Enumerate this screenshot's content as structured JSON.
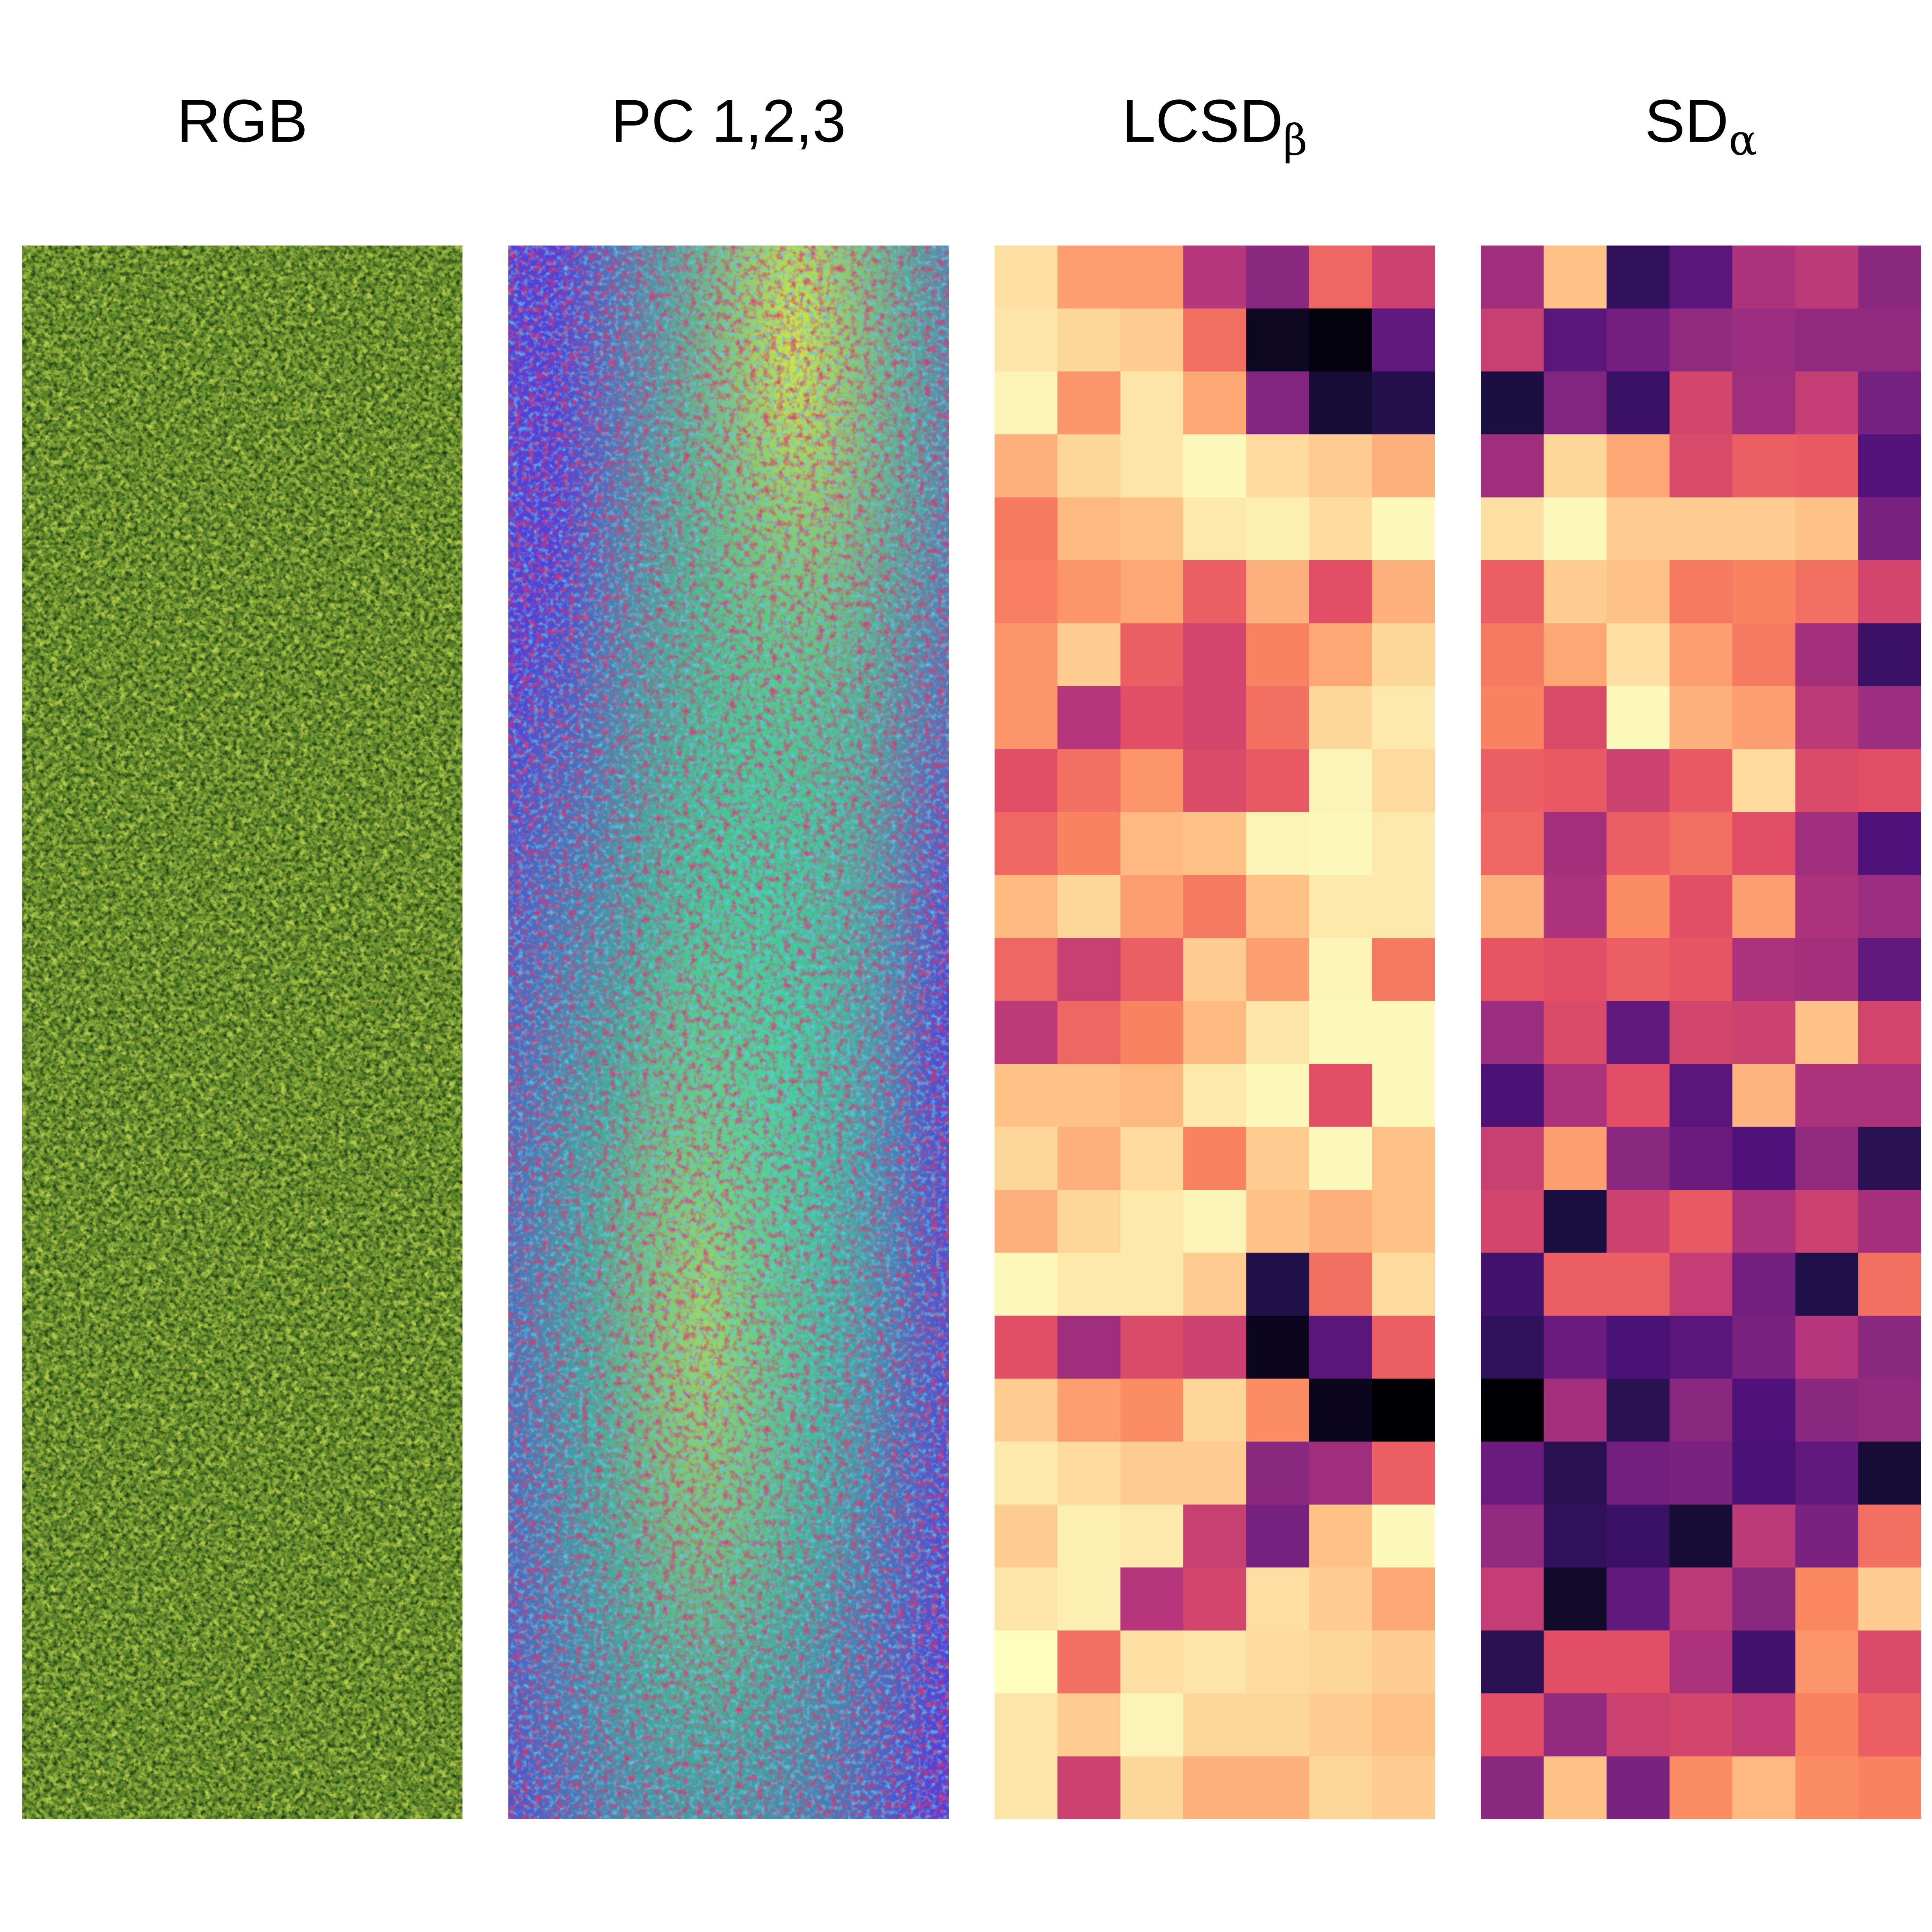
{
  "panels": [
    {
      "title": "RGB",
      "sub": ""
    },
    {
      "title": "PC 1,2,3",
      "sub": ""
    },
    {
      "title": "LCSD",
      "sub": "β"
    },
    {
      "title": "SD",
      "sub": "α"
    }
  ],
  "colormap": "magma",
  "lcsd_values": [
    [
      0.94,
      0.8,
      0.8,
      0.5,
      0.4,
      0.68,
      0.56
    ],
    [
      0.95,
      0.92,
      0.9,
      0.7,
      0.06,
      0.02,
      0.3
    ],
    [
      0.98,
      0.78,
      0.95,
      0.82,
      0.38,
      0.1,
      0.15
    ],
    [
      0.84,
      0.92,
      0.95,
      0.99,
      0.93,
      0.9,
      0.84
    ],
    [
      0.72,
      0.86,
      0.88,
      0.96,
      0.97,
      0.93,
      0.99
    ],
    [
      0.73,
      0.78,
      0.82,
      0.66,
      0.84,
      0.62,
      0.84
    ],
    [
      0.78,
      0.9,
      0.66,
      0.58,
      0.74,
      0.82,
      0.92
    ],
    [
      0.78,
      0.5,
      0.62,
      0.58,
      0.7,
      0.92,
      0.96
    ],
    [
      0.62,
      0.7,
      0.78,
      0.6,
      0.65,
      0.98,
      0.93
    ],
    [
      0.68,
      0.74,
      0.86,
      0.88,
      0.98,
      0.99,
      0.96
    ],
    [
      0.86,
      0.92,
      0.8,
      0.72,
      0.88,
      0.96,
      0.96
    ],
    [
      0.68,
      0.55,
      0.66,
      0.9,
      0.8,
      0.98,
      0.72
    ],
    [
      0.52,
      0.68,
      0.74,
      0.86,
      0.95,
      0.99,
      0.99
    ],
    [
      0.88,
      0.88,
      0.86,
      0.96,
      0.99,
      0.62,
      0.99
    ],
    [
      0.92,
      0.84,
      0.93,
      0.74,
      0.9,
      0.99,
      0.88
    ],
    [
      0.84,
      0.92,
      0.96,
      0.98,
      0.88,
      0.84,
      0.88
    ],
    [
      0.99,
      0.96,
      0.96,
      0.9,
      0.14,
      0.7,
      0.93
    ],
    [
      0.62,
      0.45,
      0.6,
      0.56,
      0.05,
      0.28,
      0.66
    ],
    [
      0.9,
      0.8,
      0.76,
      0.92,
      0.76,
      0.05,
      0.0
    ],
    [
      0.96,
      0.93,
      0.9,
      0.9,
      0.4,
      0.45,
      0.66
    ],
    [
      0.9,
      0.97,
      0.96,
      0.55,
      0.35,
      0.88,
      0.99
    ],
    [
      0.95,
      0.97,
      0.5,
      0.58,
      0.94,
      0.9,
      0.82
    ],
    [
      1.0,
      0.7,
      0.94,
      0.95,
      0.93,
      0.92,
      0.9
    ],
    [
      0.95,
      0.9,
      0.98,
      0.92,
      0.92,
      0.9,
      0.88
    ],
    [
      0.95,
      0.56,
      0.92,
      0.84,
      0.84,
      0.92,
      0.9
    ]
  ],
  "sd_values": [
    [
      0.45,
      0.88,
      0.18,
      0.28,
      0.48,
      0.52,
      0.4
    ],
    [
      0.55,
      0.28,
      0.34,
      0.42,
      0.44,
      0.42,
      0.42
    ],
    [
      0.12,
      0.38,
      0.2,
      0.58,
      0.45,
      0.54,
      0.35
    ],
    [
      0.45,
      0.92,
      0.82,
      0.6,
      0.66,
      0.65,
      0.26
    ],
    [
      0.94,
      0.99,
      0.9,
      0.9,
      0.9,
      0.88,
      0.36
    ],
    [
      0.66,
      0.9,
      0.88,
      0.72,
      0.74,
      0.7,
      0.58
    ],
    [
      0.72,
      0.82,
      0.94,
      0.8,
      0.72,
      0.46,
      0.2
    ],
    [
      0.74,
      0.6,
      0.99,
      0.84,
      0.8,
      0.52,
      0.44
    ],
    [
      0.66,
      0.65,
      0.56,
      0.65,
      0.93,
      0.6,
      0.62
    ],
    [
      0.68,
      0.46,
      0.66,
      0.7,
      0.62,
      0.45,
      0.25
    ],
    [
      0.84,
      0.48,
      0.76,
      0.62,
      0.8,
      0.48,
      0.44
    ],
    [
      0.64,
      0.62,
      0.66,
      0.64,
      0.48,
      0.46,
      0.3
    ],
    [
      0.44,
      0.6,
      0.3,
      0.58,
      0.56,
      0.88,
      0.58
    ],
    [
      0.24,
      0.48,
      0.62,
      0.28,
      0.85,
      0.48,
      0.48
    ],
    [
      0.55,
      0.8,
      0.4,
      0.32,
      0.25,
      0.42,
      0.16
    ],
    [
      0.58,
      0.12,
      0.56,
      0.65,
      0.48,
      0.56,
      0.46
    ],
    [
      0.22,
      0.66,
      0.66,
      0.54,
      0.34,
      0.14,
      0.7
    ],
    [
      0.18,
      0.32,
      0.24,
      0.28,
      0.36,
      0.5,
      0.4
    ],
    [
      0.0,
      0.46,
      0.16,
      0.4,
      0.25,
      0.4,
      0.42
    ],
    [
      0.32,
      0.16,
      0.34,
      0.36,
      0.24,
      0.3,
      0.1
    ],
    [
      0.42,
      0.18,
      0.2,
      0.1,
      0.52,
      0.36,
      0.7
    ],
    [
      0.54,
      0.08,
      0.3,
      0.52,
      0.4,
      0.75,
      0.9
    ],
    [
      0.16,
      0.62,
      0.62,
      0.48,
      0.22,
      0.78,
      0.6
    ],
    [
      0.62,
      0.42,
      0.56,
      0.58,
      0.54,
      0.74,
      0.66
    ],
    [
      0.4,
      0.88,
      0.36,
      0.76,
      0.86,
      0.76,
      0.74
    ]
  ]
}
